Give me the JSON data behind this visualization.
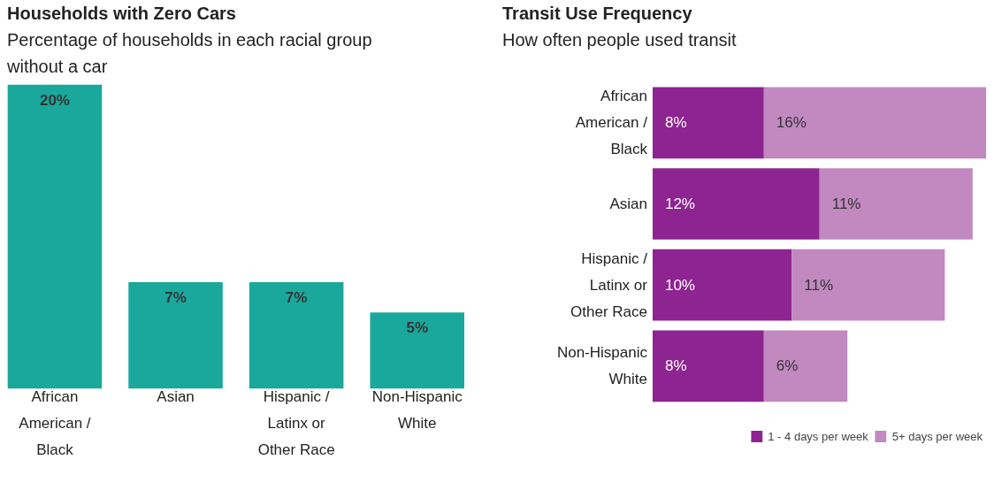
{
  "chart_data": [
    {
      "type": "bar",
      "title": "Households with Zero Cars",
      "subtitle": "Percentage of households in each racial group without a car",
      "categories": [
        "African American / Black",
        "Asian",
        "Hispanic / Latinx or Other Race",
        "Non-Hispanic White"
      ],
      "values": [
        20,
        7,
        7,
        5
      ],
      "value_labels": [
        "20%",
        "7%",
        "7%",
        "5%"
      ],
      "color": "#1ba89c",
      "grid": false
    },
    {
      "type": "bar",
      "orientation": "horizontal",
      "stacked": true,
      "title": "Transit Use Frequency",
      "subtitle": "How often people used transit",
      "categories": [
        "African American / Black",
        "Asian",
        "Hispanic / Latinx or Other Race",
        "Non-Hispanic White"
      ],
      "series": [
        {
          "name": "1 - 4 days per week",
          "color": "#8e2491",
          "values": [
            8,
            12,
            10,
            8
          ],
          "value_labels": [
            "8%",
            "12%",
            "10%",
            "8%"
          ]
        },
        {
          "name": "5+ days per week",
          "color": "#c189c0",
          "values": [
            16,
            11,
            11,
            6
          ],
          "value_labels": [
            "16%",
            "11%",
            "11%",
            "6%"
          ]
        }
      ],
      "grid": false,
      "legend": "bottom"
    }
  ]
}
